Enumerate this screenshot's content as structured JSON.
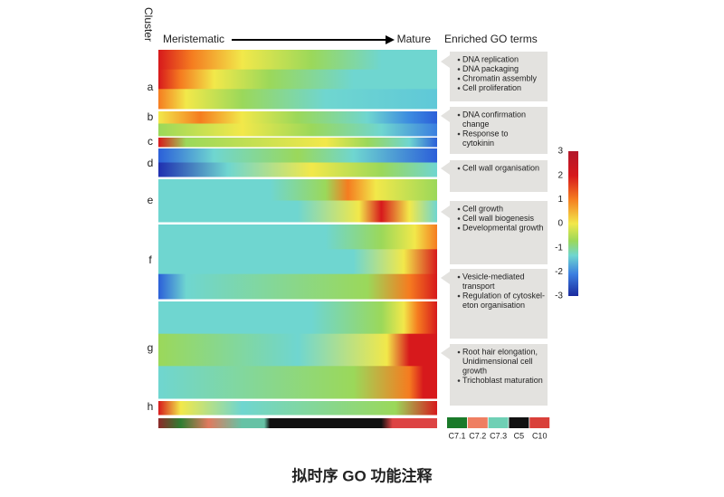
{
  "header": {
    "cluster_label": "Cluster",
    "start": "Meristematic",
    "end": "Mature",
    "go_title": "Enriched GO terms"
  },
  "clusters": [
    "a",
    "b",
    "c",
    "d",
    "e",
    "f",
    "g",
    "h"
  ],
  "go_terms": [
    [
      [
        "DNA replication"
      ],
      [
        "DNA packaging"
      ],
      [
        "Chromatin assembly"
      ],
      [
        "Cell proliferation"
      ]
    ],
    [
      [
        "DNA confirmation",
        "change"
      ],
      [
        "Response to",
        "cytokinin"
      ]
    ],
    [
      [
        "Cell wall organisation"
      ]
    ],
    [
      [
        "Cell growth"
      ],
      [
        "Cell wall biogenesis"
      ],
      [
        "Developmental growth"
      ]
    ],
    [
      [
        "Vesicle-mediated",
        "transport"
      ],
      [
        "Regulation of cytoskel-",
        "eton organisation"
      ]
    ],
    [
      [
        "Root hair elongation,",
        "Unidimensional cell",
        "growth"
      ],
      [
        "Trichoblast maturation"
      ]
    ]
  ],
  "colorbar_ticks": [
    3,
    2,
    1,
    0,
    -1,
    -2,
    -3
  ],
  "cell_types": [
    "C7.1",
    "C7.2",
    "C7.3",
    "C5",
    "C10"
  ],
  "caption": "拟时序 GO 功能注释"
}
